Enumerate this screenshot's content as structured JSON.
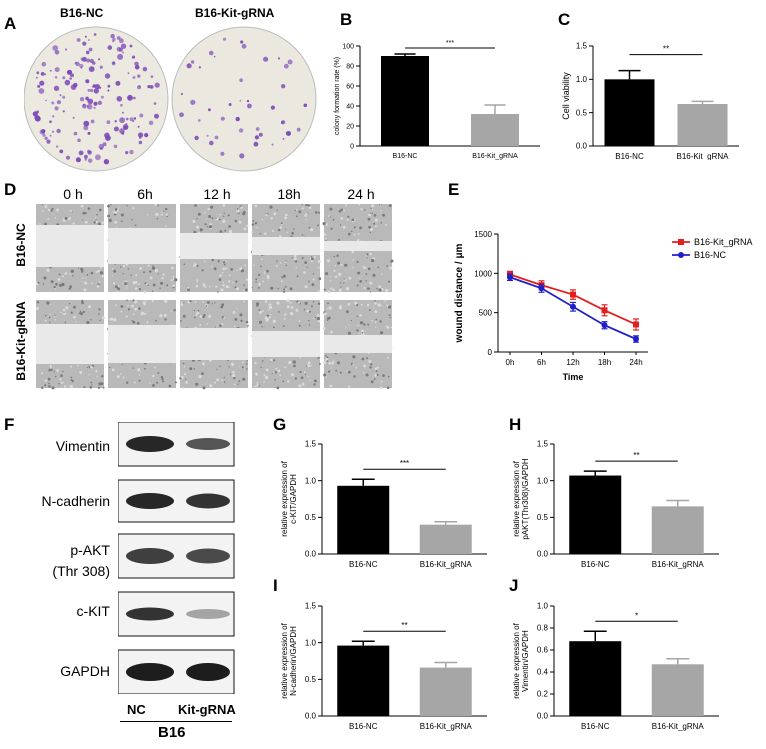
{
  "panels": {
    "A": "A",
    "B": "B",
    "C": "C",
    "D": "D",
    "E": "E",
    "F": "F",
    "G": "G",
    "H": "H",
    "I": "I",
    "J": "J"
  },
  "colony_panel": {
    "labels": [
      "B16-NC",
      "B16-Kit-gRNA"
    ],
    "dish_colors": {
      "background": "#ece9e1",
      "colony": "#7d4bb8"
    }
  },
  "wound_panel": {
    "time_labels": [
      "0 h",
      "6h",
      "12 h",
      "18h",
      "24 h"
    ],
    "row_labels": [
      "B16-NC",
      "B16-Kit-gRNA"
    ]
  },
  "western_panel": {
    "proteins": [
      "Vimentin",
      "N-cadherin",
      "p-AKT",
      "(Thr 308)",
      "c-KIT",
      "GAPDH"
    ],
    "lanes": [
      "NC",
      "Kit-gRNA"
    ],
    "cell_line": "B16"
  },
  "colors": {
    "nc": "#000000",
    "kit": "#a6a6a6",
    "line_nc": "#1f1fc8",
    "line_kit": "#e31e1e"
  },
  "chart_data": [
    {
      "id": "B",
      "type": "bar",
      "categories": [
        "B16-NC",
        "B16-Kit_gRNA"
      ],
      "values": [
        90,
        32
      ],
      "errors": [
        2,
        9
      ],
      "ylabel": "colony formation rate (%)",
      "ylim": [
        0,
        100
      ],
      "yticks": [
        0,
        20,
        40,
        60,
        80,
        100
      ],
      "significance": "***"
    },
    {
      "id": "C",
      "type": "bar",
      "categories": [
        "B16-NC",
        "B16-Kit_gRNA"
      ],
      "values": [
        1.0,
        0.63
      ],
      "errors": [
        0.13,
        0.04
      ],
      "ylabel": "Cell viability",
      "ylim": [
        0,
        1.5
      ],
      "yticks": [
        0.0,
        0.5,
        1.0,
        1.5
      ],
      "significance": "**"
    },
    {
      "id": "E",
      "type": "line",
      "x": [
        "0h",
        "6h",
        "12h",
        "18h",
        "24h"
      ],
      "xlabel": "Time",
      "ylabel": "wound distance / μm",
      "ylim": [
        0,
        1500
      ],
      "yticks": [
        0,
        500,
        1000,
        1500
      ],
      "series": [
        {
          "name": "B16-Kit_gRNA",
          "values": [
            985,
            850,
            730,
            530,
            350
          ],
          "errors": [
            40,
            55,
            60,
            70,
            70
          ]
        },
        {
          "name": "B16-NC",
          "values": [
            950,
            810,
            575,
            340,
            165
          ],
          "errors": [
            40,
            50,
            55,
            45,
            40
          ]
        }
      ],
      "legend": "top-right"
    },
    {
      "id": "G",
      "type": "bar",
      "categories": [
        "B16-NC",
        "B16-Kit_gRNA"
      ],
      "values": [
        0.93,
        0.4
      ],
      "errors": [
        0.09,
        0.04
      ],
      "ylabel": "relative expression of c-KIT/GAPDH",
      "ylim": [
        0,
        1.5
      ],
      "yticks": [
        0.0,
        0.5,
        1.0,
        1.5
      ],
      "significance": "***"
    },
    {
      "id": "H",
      "type": "bar",
      "categories": [
        "B16-NC",
        "B16-Kit_gRNA"
      ],
      "values": [
        1.07,
        0.65
      ],
      "errors": [
        0.06,
        0.08
      ],
      "ylabel": "relative expression of pAKT(Thr308)/GAPDH",
      "ylim": [
        0,
        1.5
      ],
      "yticks": [
        0.0,
        0.5,
        1.0,
        1.5
      ],
      "significance": "**"
    },
    {
      "id": "I",
      "type": "bar",
      "categories": [
        "B16-NC",
        "B16-Kit_gRNA"
      ],
      "values": [
        0.96,
        0.66
      ],
      "errors": [
        0.06,
        0.07
      ],
      "ylabel": "relative expression of N-cadherin/GAPDH",
      "ylim": [
        0,
        1.5
      ],
      "yticks": [
        0.0,
        0.5,
        1.0,
        1.5
      ],
      "significance": "**"
    },
    {
      "id": "J",
      "type": "bar",
      "categories": [
        "B16-NC",
        "B16-Kit_gRNA"
      ],
      "values": [
        0.68,
        0.47
      ],
      "errors": [
        0.09,
        0.05
      ],
      "ylabel": "relative expression of Vimentin/GAPDH",
      "ylim": [
        0,
        1.0
      ],
      "yticks": [
        0.0,
        0.2,
        0.4,
        0.6,
        0.8,
        1.0
      ],
      "significance": "*"
    }
  ]
}
